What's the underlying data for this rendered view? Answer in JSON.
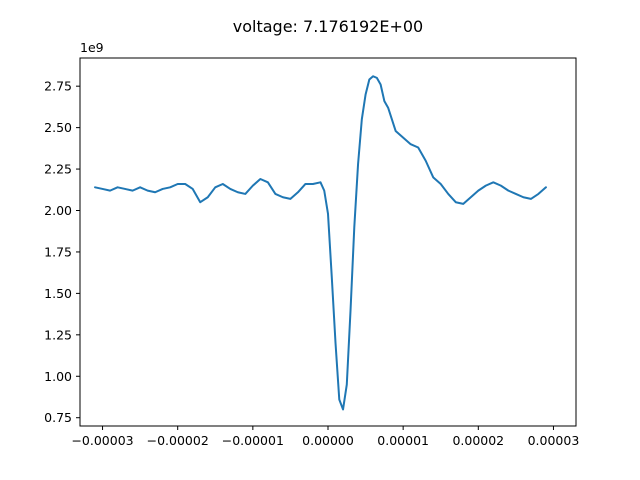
{
  "chart_data": {
    "type": "line",
    "title": "voltage: 7.176192E+00",
    "xlabel": "",
    "ylabel": "",
    "y_offset_label": "1e9",
    "xlim": [
      -3.3e-05,
      3.3e-05
    ],
    "ylim": [
      0.7,
      2.92
    ],
    "grid": false,
    "x_ticks": [
      {
        "value": -3e-05,
        "label": "−0.00003"
      },
      {
        "value": -2e-05,
        "label": "−0.00002"
      },
      {
        "value": -1e-05,
        "label": "−0.00001"
      },
      {
        "value": 0.0,
        "label": "0.00000"
      },
      {
        "value": 1e-05,
        "label": "0.00001"
      },
      {
        "value": 2e-05,
        "label": "0.00002"
      },
      {
        "value": 3e-05,
        "label": "0.00003"
      }
    ],
    "y_ticks": [
      {
        "value": 0.75,
        "label": "0.75"
      },
      {
        "value": 1.0,
        "label": "1.00"
      },
      {
        "value": 1.25,
        "label": "1.25"
      },
      {
        "value": 1.5,
        "label": "1.50"
      },
      {
        "value": 1.75,
        "label": "1.75"
      },
      {
        "value": 2.0,
        "label": "2.00"
      },
      {
        "value": 2.25,
        "label": "2.25"
      },
      {
        "value": 2.5,
        "label": "2.50"
      },
      {
        "value": 2.75,
        "label": "2.75"
      }
    ],
    "series": [
      {
        "color": "#1f77b4",
        "x": [
          -3.1e-05,
          -3e-05,
          -2.9e-05,
          -2.8e-05,
          -2.7e-05,
          -2.6e-05,
          -2.5e-05,
          -2.4e-05,
          -2.3e-05,
          -2.2e-05,
          -2.1e-05,
          -2e-05,
          -1.9e-05,
          -1.8e-05,
          -1.7e-05,
          -1.6e-05,
          -1.5e-05,
          -1.4e-05,
          -1.3e-05,
          -1.2e-05,
          -1.1e-05,
          -1e-05,
          -9e-06,
          -8e-06,
          -7e-06,
          -6e-06,
          -5e-06,
          -4e-06,
          -3e-06,
          -2e-06,
          -1e-06,
          -5e-07,
          0.0,
          5e-07,
          1e-06,
          1.5e-06,
          2e-06,
          2.5e-06,
          3e-06,
          3.5e-06,
          4e-06,
          4.5e-06,
          5e-06,
          5.5e-06,
          6e-06,
          6.5e-06,
          7e-06,
          7.5e-06,
          8e-06,
          8.5e-06,
          9e-06,
          1e-05,
          1.1e-05,
          1.2e-05,
          1.3e-05,
          1.4e-05,
          1.5e-05,
          1.6e-05,
          1.7e-05,
          1.8e-05,
          1.9e-05,
          2e-05,
          2.1e-05,
          2.2e-05,
          2.3e-05,
          2.4e-05,
          2.5e-05,
          2.6e-05,
          2.7e-05,
          2.8e-05,
          2.9e-05
        ],
        "y": [
          2.14,
          2.13,
          2.12,
          2.14,
          2.13,
          2.12,
          2.14,
          2.12,
          2.11,
          2.13,
          2.14,
          2.16,
          2.16,
          2.13,
          2.05,
          2.08,
          2.14,
          2.16,
          2.13,
          2.11,
          2.1,
          2.15,
          2.19,
          2.17,
          2.1,
          2.08,
          2.07,
          2.11,
          2.16,
          2.16,
          2.17,
          2.12,
          1.98,
          1.6,
          1.2,
          0.86,
          0.8,
          0.95,
          1.4,
          1.9,
          2.28,
          2.55,
          2.7,
          2.79,
          2.81,
          2.8,
          2.76,
          2.66,
          2.62,
          2.55,
          2.48,
          2.44,
          2.4,
          2.38,
          2.3,
          2.2,
          2.16,
          2.1,
          2.05,
          2.04,
          2.08,
          2.12,
          2.15,
          2.17,
          2.15,
          2.12,
          2.1,
          2.08,
          2.07,
          2.1,
          2.14
        ]
      }
    ]
  }
}
